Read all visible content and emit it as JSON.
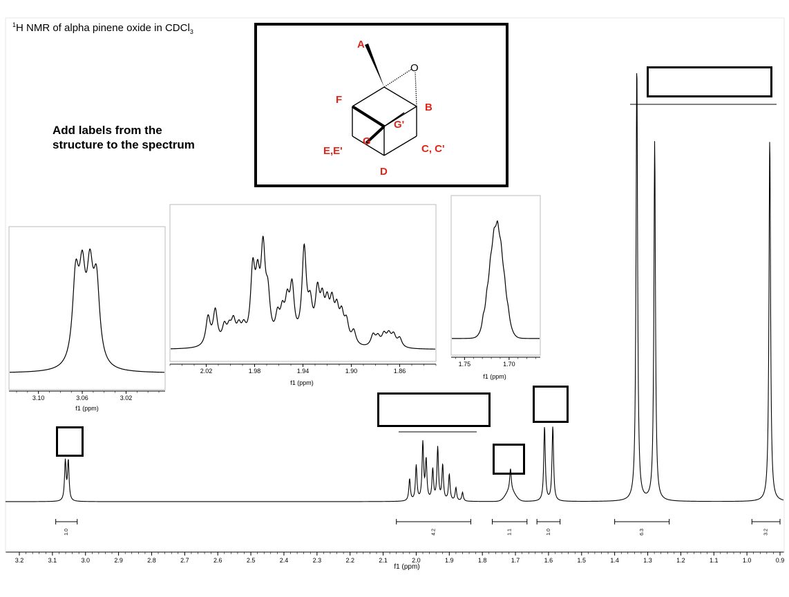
{
  "title": {
    "prefix": "1",
    "text": "H NMR of alpha pinene oxide in CDCl",
    "sub": "3"
  },
  "instruction": "Add labels from the structure to the spectrum",
  "structure": {
    "atom_o": "O",
    "labels": {
      "A": "A",
      "B": "B",
      "F": "F",
      "Gp": "G'",
      "G": "G",
      "EE": "E,E'",
      "CC": "C, C'",
      "D": "D"
    }
  },
  "colors": {
    "label": "#e0251b",
    "trace": "#000000",
    "inset_border": "#bbbbbb"
  },
  "chart_data": [
    {
      "type": "line",
      "xlabel": "f1 (ppm)",
      "xlim": [
        3.2,
        0.9
      ],
      "xticks": [
        "3.2",
        "3.1",
        "3.0",
        "2.9",
        "2.8",
        "2.7",
        "2.6",
        "2.5",
        "2.4",
        "2.3",
        "2.2",
        "2.1",
        "2.0",
        "1.9",
        "1.8",
        "1.7",
        "1.6",
        "1.5",
        "1.4",
        "1.3",
        "1.2",
        "1.1",
        "1.0",
        "0.9"
      ],
      "peaks": [
        {
          "center": 3.061,
          "height": 0.09
        },
        {
          "center": 3.052,
          "height": 0.09
        },
        {
          "center": 2.02,
          "height": 0.05
        },
        {
          "center": 2.0,
          "height": 0.08
        },
        {
          "center": 1.98,
          "height": 0.13
        },
        {
          "center": 1.97,
          "height": 0.09
        },
        {
          "center": 1.95,
          "height": 0.07
        },
        {
          "center": 1.935,
          "height": 0.12
        },
        {
          "center": 1.92,
          "height": 0.08
        },
        {
          "center": 1.9,
          "height": 0.06
        },
        {
          "center": 1.88,
          "height": 0.03
        },
        {
          "center": 1.86,
          "height": 0.02
        },
        {
          "center": 1.715,
          "height": 0.05
        },
        {
          "center": 1.612,
          "height": 0.17
        },
        {
          "center": 1.587,
          "height": 0.17
        },
        {
          "center": 1.333,
          "height": 1.0
        },
        {
          "center": 1.279,
          "height": 0.82
        },
        {
          "center": 0.931,
          "height": 0.83
        }
      ],
      "integrals": [
        {
          "from": 3.09,
          "to": 3.025,
          "value": "1.0"
        },
        {
          "from": 2.06,
          "to": 1.835,
          "value": "4.2"
        },
        {
          "from": 1.77,
          "to": 1.665,
          "value": "1.1"
        },
        {
          "from": 1.635,
          "to": 1.565,
          "value": "1.0"
        },
        {
          "from": 1.4,
          "to": 1.235,
          "value": "6.3"
        },
        {
          "from": 0.985,
          "to": 0.9,
          "value": "3.2"
        }
      ]
    },
    {
      "type": "line",
      "xlabel": "f1 (ppm)",
      "xlim": [
        3.12,
        2.99
      ],
      "xticks": [
        "3.10",
        "3.06",
        "3.02"
      ]
    },
    {
      "type": "line",
      "xlabel": "f1 (ppm)",
      "xlim": [
        2.05,
        1.83
      ],
      "xticks": [
        "2.02",
        "1.98",
        "1.94",
        "1.90",
        "1.86"
      ]
    },
    {
      "type": "line",
      "xlabel": "f1 (ppm)",
      "xlim": [
        1.765,
        1.665
      ],
      "xticks": [
        "1.75",
        "1.70"
      ]
    }
  ]
}
